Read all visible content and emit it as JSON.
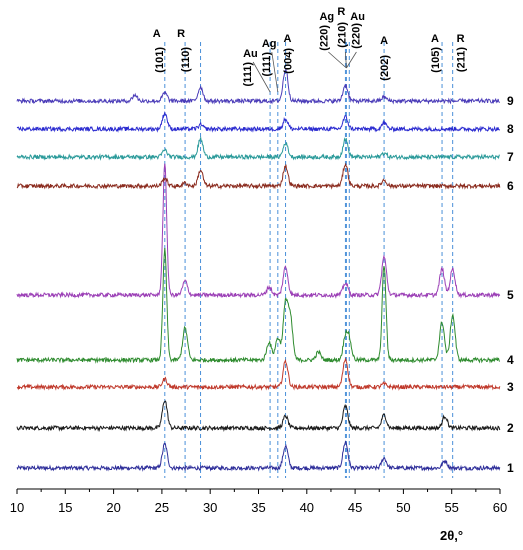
{
  "chart_data": {
    "type": "line",
    "title": "",
    "xlabel": "2θ,°",
    "ylabel": "",
    "xlim": [
      10,
      60
    ],
    "xticks": [
      10,
      15,
      20,
      25,
      30,
      35,
      40,
      45,
      50,
      55,
      60
    ],
    "grid": false,
    "reference_lines": [
      {
        "x": 25.3,
        "phase": "A",
        "hkl": "(101)"
      },
      {
        "x": 27.4,
        "phase": "R",
        "hkl": "(110)"
      },
      {
        "x": 29.0,
        "phase": "",
        "hkl": ""
      },
      {
        "x": 36.2,
        "phase": "Au",
        "hkl": "(111)"
      },
      {
        "x": 37.0,
        "phase": "Ag",
        "hkl": "(111)"
      },
      {
        "x": 37.8,
        "phase": "A",
        "hkl": "(004)"
      },
      {
        "x": 44.0,
        "phase": "Ag",
        "hkl": "(220)"
      },
      {
        "x": 44.1,
        "phase": "R",
        "hkl": "(210)"
      },
      {
        "x": 44.4,
        "phase": "Au",
        "hkl": "(220)"
      },
      {
        "x": 48.0,
        "phase": "A",
        "hkl": "(202)"
      },
      {
        "x": 54.0,
        "phase": "A",
        "hkl": "(105)"
      },
      {
        "x": 55.1,
        "phase": "R",
        "hkl": "(211)"
      }
    ],
    "series": [
      {
        "name": "1",
        "color": "#2e2e9a",
        "peaks": [
          {
            "x": 25.3,
            "h": 24
          },
          {
            "x": 37.8,
            "h": 22
          },
          {
            "x": 44.0,
            "h": 26
          },
          {
            "x": 48.0,
            "h": 10
          },
          {
            "x": 54.3,
            "h": 7
          }
        ]
      },
      {
        "name": "2",
        "color": "#1a1a1a",
        "peaks": [
          {
            "x": 25.3,
            "h": 28
          },
          {
            "x": 37.8,
            "h": 12
          },
          {
            "x": 44.0,
            "h": 22
          },
          {
            "x": 48.0,
            "h": 13
          },
          {
            "x": 54.3,
            "h": 12
          }
        ]
      },
      {
        "name": "3",
        "color": "#c0392b",
        "peaks": [
          {
            "x": 25.3,
            "h": 8
          },
          {
            "x": 37.8,
            "h": 26
          },
          {
            "x": 44.0,
            "h": 28
          },
          {
            "x": 48.0,
            "h": 3
          }
        ]
      },
      {
        "name": "4",
        "color": "#2e8b2e",
        "peaks": [
          {
            "x": 25.3,
            "h": 110
          },
          {
            "x": 27.4,
            "h": 32
          },
          {
            "x": 36.1,
            "h": 18
          },
          {
            "x": 37.0,
            "h": 22
          },
          {
            "x": 37.8,
            "h": 55
          },
          {
            "x": 38.3,
            "h": 40
          },
          {
            "x": 41.2,
            "h": 8
          },
          {
            "x": 44.0,
            "h": 22
          },
          {
            "x": 44.4,
            "h": 18
          },
          {
            "x": 48.0,
            "h": 95
          },
          {
            "x": 54.0,
            "h": 38
          },
          {
            "x": 55.1,
            "h": 45
          }
        ]
      },
      {
        "name": "5",
        "color": "#9b3fb6",
        "peaks": [
          {
            "x": 25.3,
            "h": 130
          },
          {
            "x": 27.4,
            "h": 14
          },
          {
            "x": 36.1,
            "h": 8
          },
          {
            "x": 37.8,
            "h": 28
          },
          {
            "x": 44.0,
            "h": 12
          },
          {
            "x": 48.0,
            "h": 38
          },
          {
            "x": 54.0,
            "h": 26
          },
          {
            "x": 55.1,
            "h": 26
          }
        ]
      },
      {
        "name": "6",
        "color": "#8b2c1f",
        "peaks": [
          {
            "x": 25.3,
            "h": 8
          },
          {
            "x": 27.4,
            "h": 3
          },
          {
            "x": 29.0,
            "h": 16
          },
          {
            "x": 37.8,
            "h": 20
          },
          {
            "x": 44.0,
            "h": 22
          },
          {
            "x": 48.0,
            "h": 6
          }
        ]
      },
      {
        "name": "7",
        "color": "#2a9a9a",
        "peaks": [
          {
            "x": 25.3,
            "h": 7
          },
          {
            "x": 29.0,
            "h": 18
          },
          {
            "x": 37.8,
            "h": 14
          },
          {
            "x": 44.0,
            "h": 18
          },
          {
            "x": 48.0,
            "h": 4
          }
        ]
      },
      {
        "name": "8",
        "color": "#2b2bd0",
        "peaks": [
          {
            "x": 25.3,
            "h": 16
          },
          {
            "x": 29.0,
            "h": 4
          },
          {
            "x": 37.8,
            "h": 10
          },
          {
            "x": 44.0,
            "h": 12
          },
          {
            "x": 48.0,
            "h": 6
          }
        ]
      },
      {
        "name": "9",
        "color": "#4a3bb8",
        "peaks": [
          {
            "x": 22.2,
            "h": 6
          },
          {
            "x": 25.3,
            "h": 8
          },
          {
            "x": 29.0,
            "h": 14
          },
          {
            "x": 37.8,
            "h": 32
          },
          {
            "x": 44.0,
            "h": 16
          },
          {
            "x": 48.0,
            "h": 4
          }
        ]
      }
    ]
  }
}
